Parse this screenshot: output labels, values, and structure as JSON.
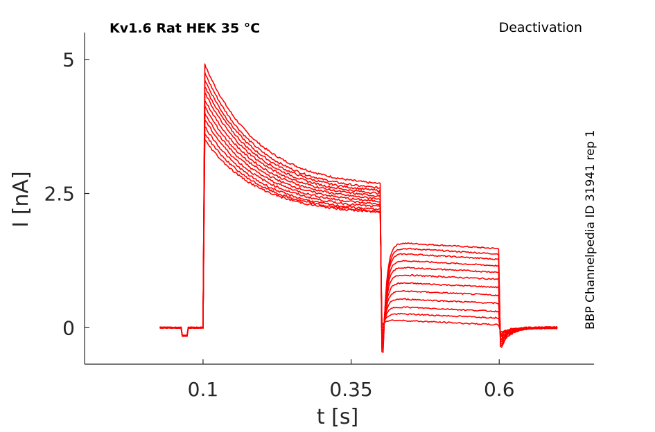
{
  "chart_data": {
    "type": "line",
    "title": "Kv1.6  Rat  HEK  35 °C",
    "subtitle": "Deactivation",
    "side_label": "BBP Channelpedia ID 31941 rep 1",
    "xlabel": "t [s]",
    "ylabel": "I [nA]",
    "xlim": [
      -0.1,
      0.76
    ],
    "ylim": [
      -0.68,
      5.5
    ],
    "x_ticks": [
      0.1,
      0.35,
      0.6
    ],
    "x_tick_labels": [
      "0.1",
      "0.35",
      "0.6"
    ],
    "y_ticks": [
      0,
      2.5,
      5
    ],
    "y_tick_labels": [
      "0",
      "2.5",
      "5"
    ],
    "grid": false,
    "color": "#ff0000",
    "protocol": {
      "baseline_start": 0.027,
      "step_on": 0.1,
      "step_off": 0.4,
      "tail_off": 0.6,
      "end": 0.7,
      "artifact_window": [
        0.065,
        0.075
      ],
      "artifact_value": -0.15
    },
    "series": [
      {
        "peak": 4.9,
        "end": 2.68,
        "tail_start": 1.6,
        "tail_end": 1.47,
        "tail_dip": -0.45
      },
      {
        "peak": 4.75,
        "end": 2.6,
        "tail_start": 1.5,
        "tail_end": 1.37,
        "tail_dip": -0.4
      },
      {
        "peak": 4.62,
        "end": 2.55,
        "tail_start": 1.4,
        "tail_end": 1.27,
        "tail_dip": -0.35
      },
      {
        "peak": 4.5,
        "end": 2.5,
        "tail_start": 1.27,
        "tail_end": 1.15,
        "tail_dip": -0.3
      },
      {
        "peak": 4.38,
        "end": 2.45,
        "tail_start": 1.14,
        "tail_end": 1.03,
        "tail_dip": -0.25
      },
      {
        "peak": 4.25,
        "end": 2.4,
        "tail_start": 1.0,
        "tail_end": 0.9,
        "tail_dip": -0.2
      },
      {
        "peak": 4.12,
        "end": 2.35,
        "tail_start": 0.85,
        "tail_end": 0.75,
        "tail_dip": -0.15
      },
      {
        "peak": 4.0,
        "end": 2.3,
        "tail_start": 0.7,
        "tail_end": 0.6,
        "tail_dip": -0.1
      },
      {
        "peak": 3.88,
        "end": 2.25,
        "tail_start": 0.55,
        "tail_end": 0.45,
        "tail_dip": -0.05
      },
      {
        "peak": 3.75,
        "end": 2.2,
        "tail_start": 0.4,
        "tail_end": 0.3,
        "tail_dip": 0.0
      },
      {
        "peak": 3.62,
        "end": 2.17,
        "tail_start": 0.27,
        "tail_end": 0.18,
        "tail_dip": 0.05
      },
      {
        "peak": 3.5,
        "end": 2.15,
        "tail_start": 0.15,
        "tail_end": 0.05,
        "tail_dip": 0.08
      }
    ]
  }
}
